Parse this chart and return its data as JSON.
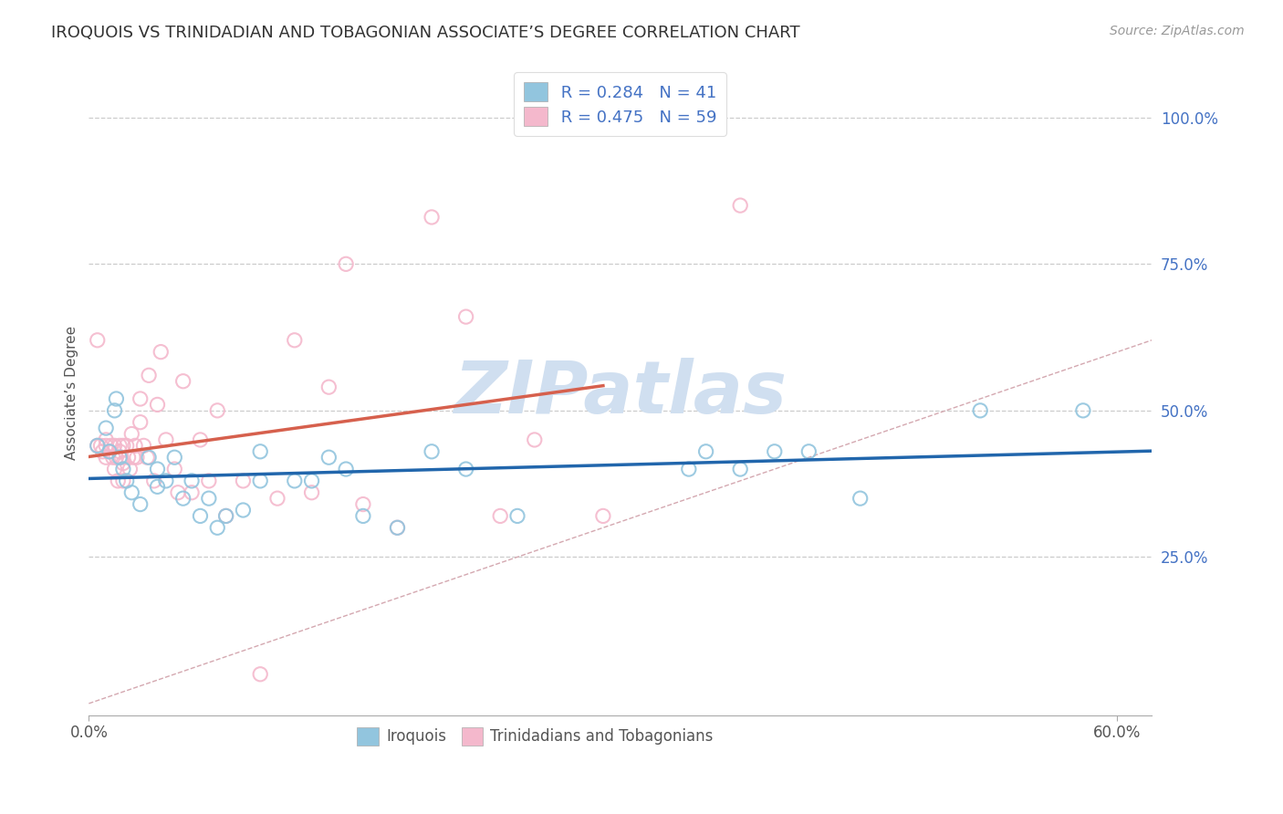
{
  "title": "IROQUOIS VS TRINIDADIAN AND TOBAGONIAN ASSOCIATE’S DEGREE CORRELATION CHART",
  "source_text": "Source: ZipAtlas.com",
  "ylabel": "Associate’s Degree",
  "xlim": [
    0.0,
    0.62
  ],
  "ylim": [
    -0.02,
    1.08
  ],
  "ytick_labels": [
    "25.0%",
    "50.0%",
    "75.0%",
    "100.0%"
  ],
  "ytick_positions": [
    0.25,
    0.5,
    0.75,
    1.0
  ],
  "r_iroquois": 0.284,
  "n_iroquois": 41,
  "r_trinidadian": 0.475,
  "n_trinidadian": 59,
  "color_iroquois": "#92c5de",
  "color_trinidadian": "#f4b8cc",
  "line_color_iroquois": "#2166ac",
  "line_color_trinidadian": "#d6604d",
  "diagonal_color": "#d0b0b0",
  "watermark_color": "#d0dff0",
  "legend_label_iroquois": "Iroquois",
  "legend_label_trinidadian": "Trinidadians and Tobagonians",
  "iroquois_x": [
    0.005,
    0.01,
    0.012,
    0.015,
    0.016,
    0.018,
    0.02,
    0.022,
    0.025,
    0.03,
    0.035,
    0.04,
    0.04,
    0.045,
    0.05,
    0.055,
    0.06,
    0.065,
    0.07,
    0.075,
    0.08,
    0.09,
    0.1,
    0.1,
    0.12,
    0.13,
    0.14,
    0.15,
    0.16,
    0.18,
    0.2,
    0.22,
    0.25,
    0.35,
    0.36,
    0.38,
    0.4,
    0.42,
    0.45,
    0.52,
    0.58
  ],
  "iroquois_y": [
    0.44,
    0.47,
    0.43,
    0.5,
    0.52,
    0.42,
    0.4,
    0.38,
    0.36,
    0.34,
    0.42,
    0.4,
    0.37,
    0.38,
    0.42,
    0.35,
    0.38,
    0.32,
    0.35,
    0.3,
    0.32,
    0.33,
    0.43,
    0.38,
    0.38,
    0.38,
    0.42,
    0.4,
    0.32,
    0.3,
    0.43,
    0.4,
    0.32,
    0.4,
    0.43,
    0.4,
    0.43,
    0.43,
    0.35,
    0.5,
    0.5
  ],
  "trinidadian_x": [
    0.005,
    0.005,
    0.007,
    0.008,
    0.01,
    0.01,
    0.01,
    0.012,
    0.013,
    0.014,
    0.015,
    0.015,
    0.016,
    0.017,
    0.018,
    0.018,
    0.019,
    0.02,
    0.02,
    0.02,
    0.022,
    0.023,
    0.024,
    0.025,
    0.026,
    0.027,
    0.028,
    0.03,
    0.03,
    0.032,
    0.034,
    0.035,
    0.038,
    0.04,
    0.042,
    0.045,
    0.05,
    0.052,
    0.055,
    0.06,
    0.065,
    0.07,
    0.075,
    0.08,
    0.09,
    0.1,
    0.11,
    0.12,
    0.13,
    0.14,
    0.15,
    0.16,
    0.18,
    0.2,
    0.22,
    0.24,
    0.26,
    0.3,
    0.38
  ],
  "trinidadian_y": [
    0.44,
    0.62,
    0.44,
    0.43,
    0.44,
    0.45,
    0.42,
    0.43,
    0.44,
    0.42,
    0.44,
    0.4,
    0.42,
    0.38,
    0.44,
    0.43,
    0.42,
    0.44,
    0.41,
    0.38,
    0.44,
    0.42,
    0.4,
    0.46,
    0.42,
    0.44,
    0.42,
    0.52,
    0.48,
    0.44,
    0.42,
    0.56,
    0.38,
    0.51,
    0.6,
    0.45,
    0.4,
    0.36,
    0.55,
    0.36,
    0.45,
    0.38,
    0.5,
    0.32,
    0.38,
    0.05,
    0.35,
    0.62,
    0.36,
    0.54,
    0.75,
    0.34,
    0.3,
    0.83,
    0.66,
    0.32,
    0.45,
    0.32,
    0.85
  ]
}
